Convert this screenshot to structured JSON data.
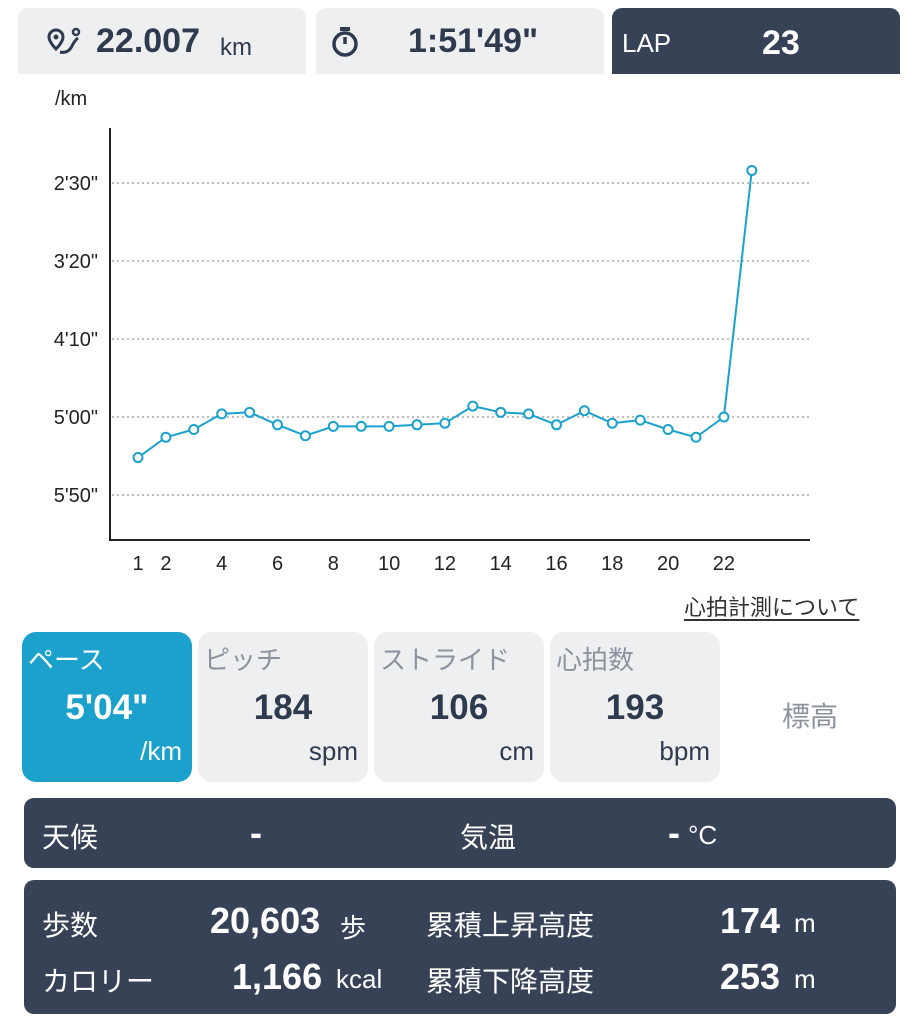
{
  "topbar": {
    "distance": {
      "icon": "route-pin-icon",
      "value": "22.007",
      "unit": "km"
    },
    "time": {
      "icon": "stopwatch-icon",
      "value": "1:51'49\""
    },
    "lap": {
      "label": "LAP",
      "value": "23"
    }
  },
  "chart_data": {
    "type": "line",
    "ylabel": "/km",
    "y_ticks": [
      "2'30\"",
      "3'20\"",
      "4'10\"",
      "5'00\"",
      "5'50\""
    ],
    "y_tick_seconds": [
      150,
      200,
      250,
      300,
      350
    ],
    "y_reversed": true,
    "x_ticks": [
      "1",
      "2",
      "4",
      "6",
      "8",
      "10",
      "12",
      "14",
      "16",
      "18",
      "20",
      "22"
    ],
    "x_tick_values": [
      1,
      2,
      4,
      6,
      8,
      10,
      12,
      14,
      16,
      18,
      20,
      22
    ],
    "grid": true,
    "series": [
      {
        "color": "#1ba1cc",
        "x": [
          1,
          2,
          3,
          4,
          5,
          6,
          7,
          8,
          9,
          10,
          11,
          12,
          13,
          14,
          15,
          16,
          17,
          18,
          19,
          20,
          21,
          22,
          23
        ],
        "y_seconds": [
          326,
          313,
          308,
          298,
          297,
          305,
          312,
          306,
          306,
          306,
          305,
          304,
          293,
          297,
          298,
          305,
          296,
          304,
          302,
          308,
          313,
          300,
          142
        ]
      }
    ]
  },
  "heart_rate_link": "心拍計測について",
  "metrics": [
    {
      "label": "ペース",
      "value": "5'04\"",
      "unit": "/km",
      "active": true
    },
    {
      "label": "ピッチ",
      "value": "184",
      "unit": "spm",
      "active": false
    },
    {
      "label": "ストライド",
      "value": "106",
      "unit": "cm",
      "active": false
    },
    {
      "label": "心拍数",
      "value": "193",
      "unit": "bpm",
      "active": false
    }
  ],
  "elevation_label": "標高",
  "weather": {
    "label": "天候",
    "value": "-",
    "temp_label": "気温",
    "temp_value": "-",
    "temp_unit": "°C"
  },
  "summary": {
    "steps_label": "歩数",
    "steps_value": "20,603",
    "steps_unit": "歩",
    "calories_label": "カロリー",
    "calories_value": "1,166",
    "calories_unit": "kcal",
    "ascent_label": "累積上昇高度",
    "ascent_value": "174",
    "ascent_unit": "m",
    "descent_label": "累積下降高度",
    "descent_value": "253",
    "descent_unit": "m"
  }
}
